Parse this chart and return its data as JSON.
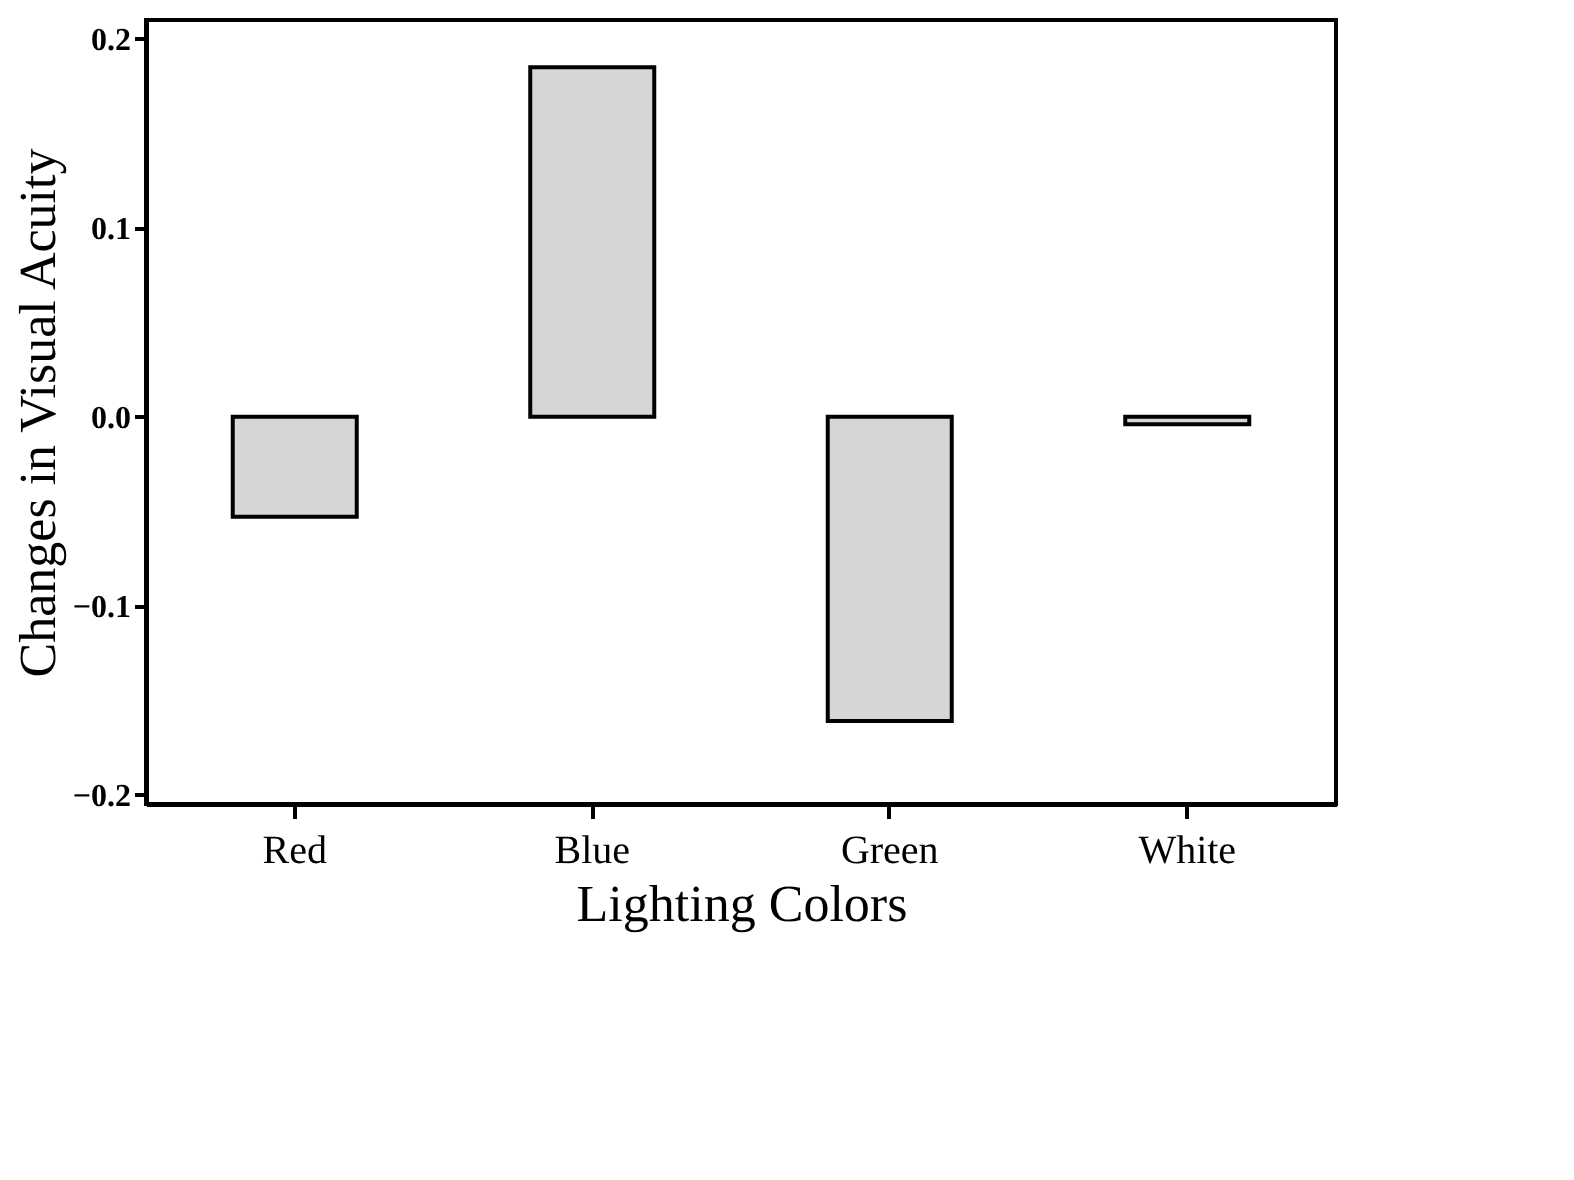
{
  "chart_data": {
    "type": "bar",
    "xlabel": "Lighting Colors",
    "ylabel": "Changes in Visual Acuity",
    "categories": [
      "Red",
      "Blue",
      "Green",
      "White"
    ],
    "values": [
      -0.053,
      0.185,
      -0.161,
      -0.004
    ],
    "color": "#d6d6d6",
    "ylim": [
      -0.205,
      0.21
    ],
    "yticks": [
      -0.2,
      -0.1,
      {
        "value": 0,
        "label": "0.0"
      },
      0.1,
      0.2
    ],
    "grid": false
  }
}
